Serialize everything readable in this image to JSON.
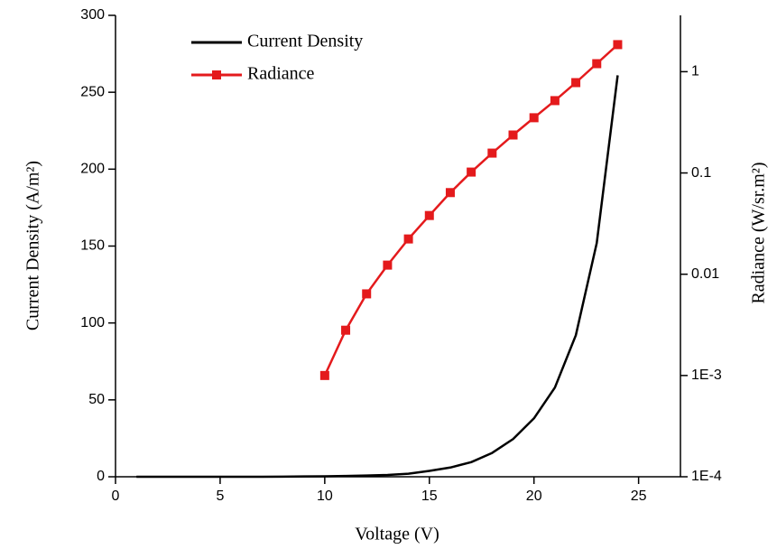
{
  "chart_data": {
    "type": "line",
    "x_label": "Voltage (V)",
    "y_label": "Current Density (A/m²)",
    "y2_label": "Radiance (W/sr.m²)",
    "xlim": [
      0,
      27
    ],
    "xticks": [
      0,
      5,
      10,
      15,
      20,
      25
    ],
    "ylim": [
      0,
      300
    ],
    "yticks": [
      0,
      50,
      100,
      150,
      200,
      250,
      300
    ],
    "y2lim": [
      0.0001,
      3.6
    ],
    "y2_log": true,
    "y2ticks": [
      {
        "value": 0.0001,
        "label": "1E-4"
      },
      {
        "value": 0.001,
        "label": "1E-3"
      },
      0.01,
      0.1,
      1
    ],
    "legend": "top-left",
    "series": [
      {
        "name": "Current Density",
        "color": "#000000",
        "marker": "none",
        "x": [
          1,
          2,
          3,
          4,
          5,
          6,
          7,
          8,
          9,
          10,
          11,
          12,
          13,
          14,
          15,
          16,
          17,
          18,
          19,
          20,
          21,
          22,
          23,
          24
        ],
        "values": [
          0,
          0,
          0,
          0,
          0,
          0,
          0,
          0.1,
          0.2,
          0.3,
          0.5,
          0.8,
          1.2,
          2,
          3.8,
          6,
          9.5,
          15.5,
          24.5,
          38,
          58,
          92,
          152,
          261
        ]
      },
      {
        "name": "Radiance",
        "color": "#e41a1c",
        "marker": "square",
        "axis": "y2",
        "x": [
          10,
          11,
          12,
          13,
          14,
          15,
          16,
          17,
          18,
          19,
          20,
          21,
          22,
          23,
          24
        ],
        "values": [
          0.001,
          0.0028,
          0.0064,
          0.0123,
          0.0223,
          0.038,
          0.064,
          0.102,
          0.157,
          0.237,
          0.351,
          0.518,
          0.78,
          1.2,
          1.85
        ]
      }
    ]
  }
}
